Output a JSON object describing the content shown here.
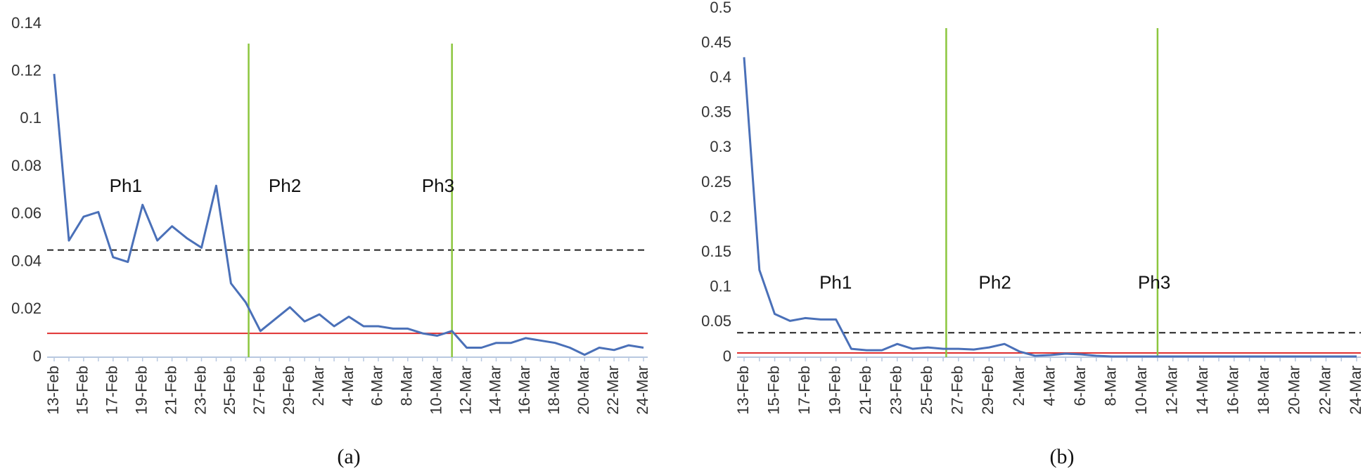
{
  "chart_data": [
    {
      "type": "line",
      "caption": "(a)",
      "annotations": [
        "Ph1",
        "Ph2",
        "Ph3"
      ],
      "categories": [
        "13-Feb",
        null,
        "15-Feb",
        null,
        "17-Feb",
        null,
        "19-Feb",
        null,
        "21-Feb",
        null,
        "23-Feb",
        null,
        "25-Feb",
        null,
        "27-Feb",
        null,
        "29-Feb",
        null,
        "2-Mar",
        null,
        "4-Mar",
        null,
        "6-Mar",
        null,
        "8-Mar",
        null,
        "10-Mar",
        null,
        "12-Mar",
        null,
        "14-Mar",
        null,
        "16-Mar",
        null,
        "18-Mar",
        null,
        "20-Mar",
        null,
        "22-Mar",
        null,
        "24-Mar"
      ],
      "series": [
        {
          "color": "#4a70b8",
          "values": [
            0.119,
            0.049,
            0.059,
            0.061,
            0.042,
            0.04,
            0.064,
            0.049,
            0.055,
            0.05,
            0.046,
            0.072,
            0.031,
            0.023,
            0.011,
            0.016,
            0.021,
            0.015,
            0.018,
            0.013,
            0.017,
            0.013,
            0.013,
            0.012,
            0.012,
            0.01,
            0.009,
            0.011,
            0.004,
            0.004,
            0.006,
            0.006,
            0.008,
            0.007,
            0.006,
            0.004,
            0.001,
            0.004,
            0.003,
            0.005,
            0.004
          ]
        }
      ],
      "ylim": [
        0,
        0.14
      ],
      "yticks": [
        0,
        0.02,
        0.04,
        0.06,
        0.08,
        0.1,
        0.12,
        0.14
      ],
      "hlines": [
        {
          "value": 0.045,
          "color": "#222222",
          "dashed": true
        },
        {
          "value": 0.01,
          "color": "#e03030",
          "dashed": false
        }
      ],
      "vlines": [
        {
          "value": 13.2,
          "color": "#8cc63e"
        },
        {
          "value": 27.0,
          "color": "#8cc63e"
        }
      ]
    },
    {
      "type": "line",
      "caption": "(b)",
      "annotations": [
        "Ph1",
        "Ph2",
        "Ph3"
      ],
      "categories": [
        "13-Feb",
        null,
        "15-Feb",
        null,
        "17-Feb",
        null,
        "19-Feb",
        null,
        "21-Feb",
        null,
        "23-Feb",
        null,
        "25-Feb",
        null,
        "27-Feb",
        null,
        "29-Feb",
        null,
        "2-Mar",
        null,
        "4-Mar",
        null,
        "6-Mar",
        null,
        "8-Mar",
        null,
        "10-Mar",
        null,
        "12-Mar",
        null,
        "14-Mar",
        null,
        "16-Mar",
        null,
        "18-Mar",
        null,
        "20-Mar",
        null,
        "22-Mar",
        null,
        "24-Mar"
      ],
      "series": [
        {
          "color": "#4a70b8",
          "values": [
            0.43,
            0.125,
            0.062,
            0.052,
            0.056,
            0.054,
            0.054,
            0.012,
            0.01,
            0.01,
            0.019,
            0.012,
            0.014,
            0.012,
            0.012,
            0.011,
            0.014,
            0.019,
            0.008,
            0.002,
            0.003,
            0.005,
            0.004,
            0.002,
            0.001,
            0.001,
            0.001,
            0.001,
            0.001,
            0.001,
            0.001,
            0.001,
            0.001,
            0.001,
            0.001,
            0.001,
            0.001,
            0.001,
            0.001,
            0.001,
            0.001
          ]
        }
      ],
      "ylim": [
        0,
        0.5
      ],
      "yticks": [
        0,
        0.05,
        0.1,
        0.15,
        0.2,
        0.25,
        0.3,
        0.35,
        0.4,
        0.45,
        0.5
      ],
      "hlines": [
        {
          "value": 0.035,
          "color": "#222222",
          "dashed": true
        },
        {
          "value": 0.006,
          "color": "#e03030",
          "dashed": false
        }
      ],
      "vlines": [
        {
          "value": 13.2,
          "color": "#8cc63e"
        },
        {
          "value": 27.0,
          "color": "#8cc63e"
        }
      ]
    }
  ]
}
